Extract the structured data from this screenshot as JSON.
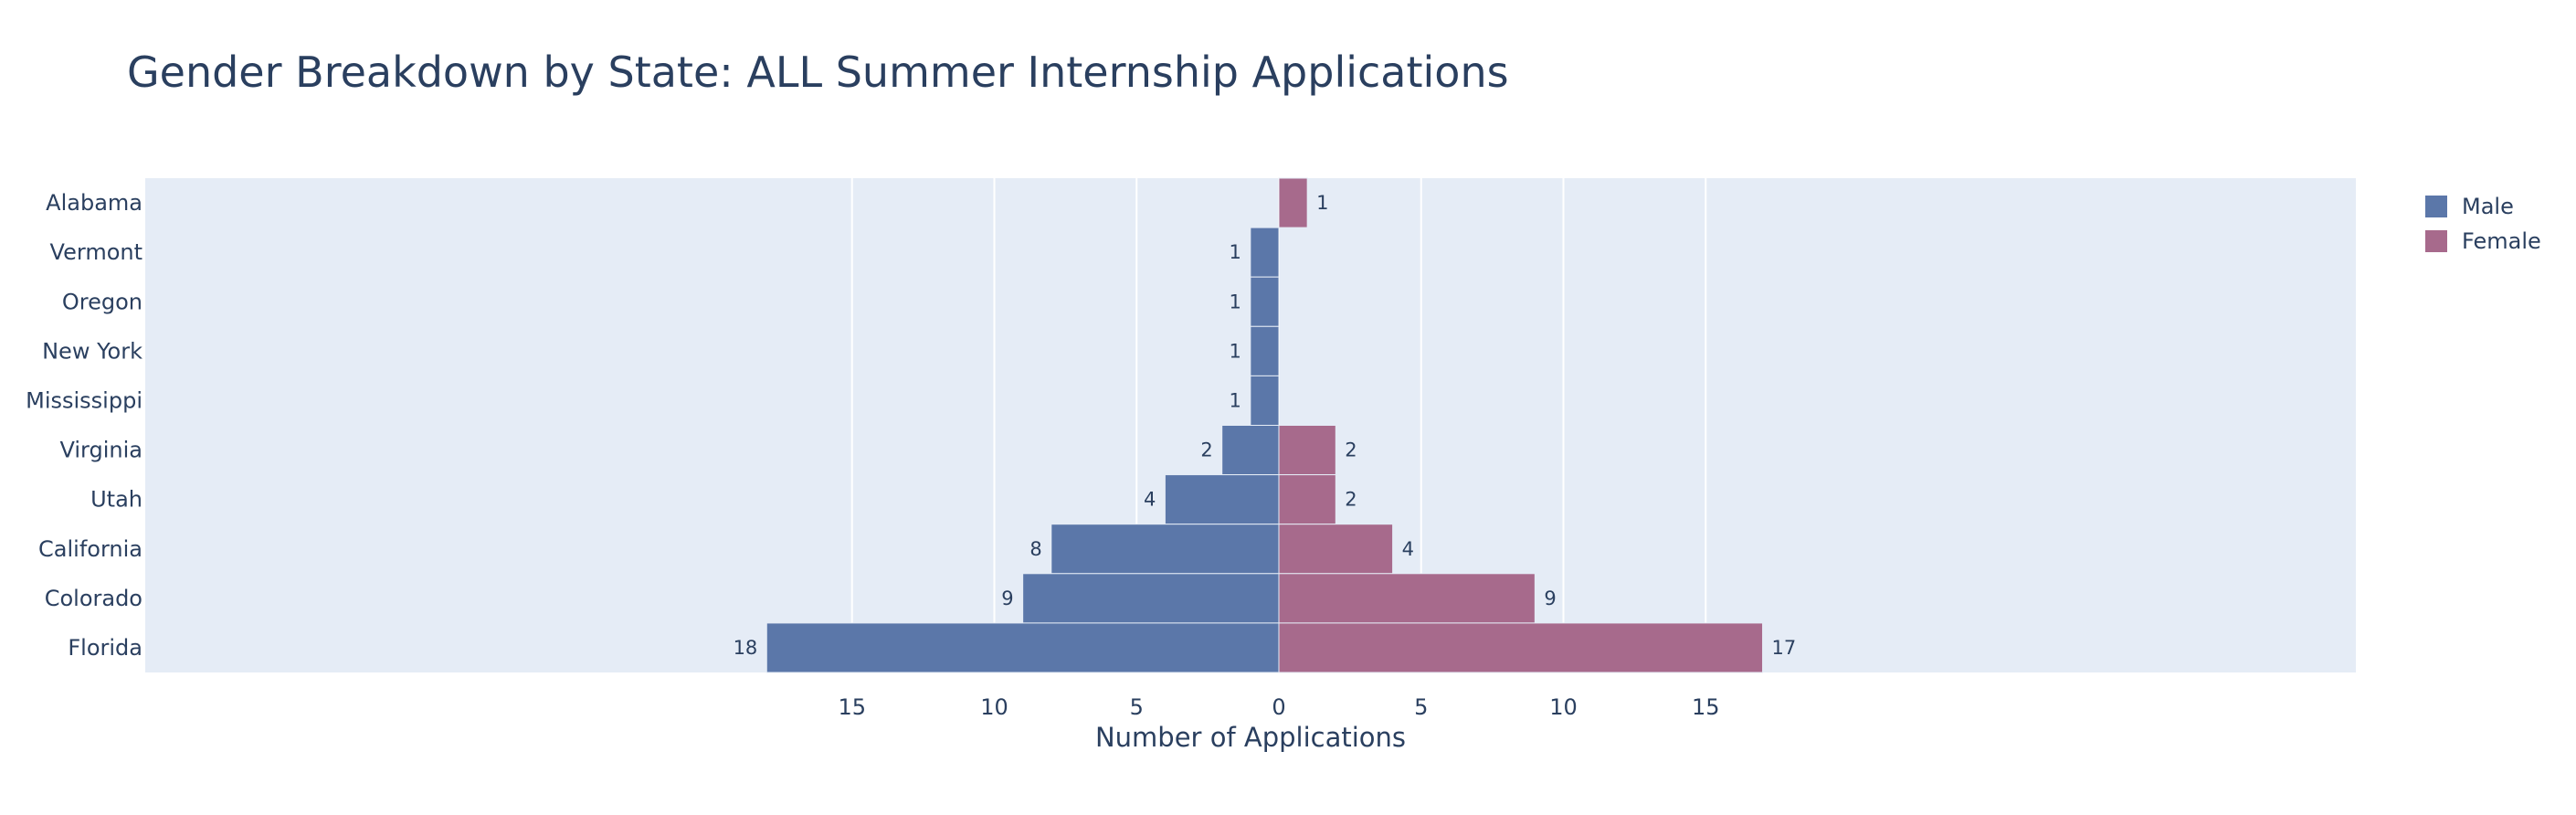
{
  "chart_data": {
    "type": "bar",
    "orientation": "horizontal",
    "title": "Gender Breakdown by State: ALL Summer Internship Applications",
    "xlabel": "Number of Applications",
    "ylabel": "",
    "categories": [
      "Alabama",
      "Vermont",
      "Oregon",
      "New York",
      "Mississippi",
      "Virginia",
      "Utah",
      "California",
      "Colorado",
      "Florida"
    ],
    "series": [
      {
        "name": "Male",
        "color": "#5b77a9",
        "direction": "left",
        "values": [
          0,
          1,
          1,
          1,
          1,
          2,
          4,
          8,
          9,
          18
        ]
      },
      {
        "name": "Female",
        "color": "#a76a8c",
        "direction": "right",
        "values": [
          1,
          0,
          0,
          0,
          0,
          2,
          2,
          4,
          9,
          17
        ]
      }
    ],
    "xlim": [
      -20,
      19
    ],
    "x_ticks": [
      -15,
      -10,
      -5,
      0,
      5,
      10,
      15
    ],
    "x_tick_labels": [
      "15",
      "10",
      "5",
      "0",
      "5",
      "10",
      "15"
    ],
    "grid": true,
    "plot_background": "#e5ecf6",
    "legend_position": "top-right"
  }
}
